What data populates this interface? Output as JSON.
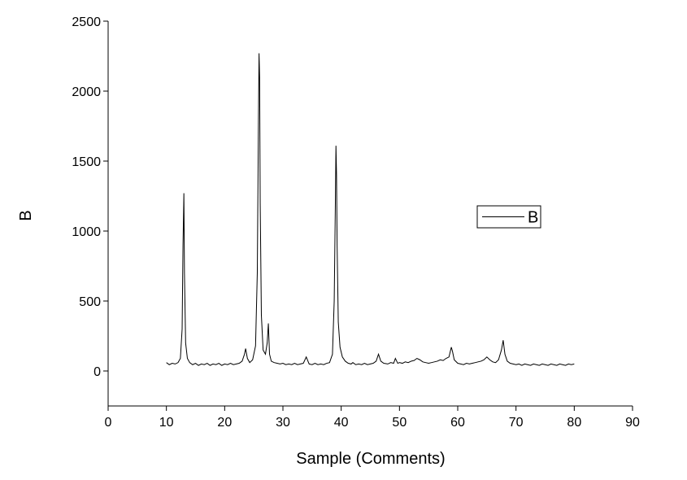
{
  "chart_data": {
    "type": "line",
    "xlabel": "Sample (Comments)",
    "ylabel": "B",
    "xlim": [
      0,
      90
    ],
    "xticks": [
      0,
      10,
      20,
      30,
      40,
      50,
      60,
      70,
      80,
      90
    ],
    "ylim": [
      -250,
      2500
    ],
    "yticks": [
      0,
      500,
      1000,
      1500,
      2000,
      2500
    ],
    "legend": "right",
    "x": [
      10,
      10.5,
      11,
      11.5,
      12,
      12.4,
      12.7,
      12.85,
      12.95,
      13.0,
      13.1,
      13.3,
      13.6,
      14,
      14.5,
      15,
      15.5,
      16,
      16.5,
      17,
      17.5,
      18,
      18.5,
      19,
      19.5,
      20,
      20.5,
      21,
      21.5,
      22,
      22.5,
      23,
      23.4,
      23.6,
      23.9,
      24.3,
      24.8,
      25.3,
      25.6,
      25.8,
      25.9,
      26.0,
      26.1,
      26.3,
      26.6,
      27.0,
      27.3,
      27.5,
      27.7,
      28.0,
      28.5,
      29,
      29.5,
      30,
      30.5,
      31,
      31.5,
      32,
      32.5,
      33,
      33.5,
      34,
      34.5,
      35,
      35.5,
      36,
      36.5,
      37,
      37.5,
      38,
      38.5,
      38.8,
      39.0,
      39.1,
      39.2,
      39.3,
      39.5,
      39.8,
      40.2,
      40.7,
      41.2,
      41.7,
      42,
      42.5,
      43,
      43.5,
      44,
      44.5,
      45,
      45.5,
      46,
      46.4,
      46.8,
      47.3,
      48,
      48.5,
      49,
      49.3,
      49.7,
      50,
      50.5,
      51,
      51.5,
      52,
      52.5,
      53,
      53.5,
      54,
      54.5,
      55,
      55.5,
      56,
      56.5,
      57,
      57.5,
      58,
      58.5,
      58.9,
      59.1,
      59.4,
      60,
      60.5,
      61,
      61.5,
      62,
      62.5,
      63,
      63.5,
      64,
      64.5,
      65,
      65.5,
      66,
      66.5,
      67,
      67.5,
      67.8,
      68.1,
      68.5,
      69,
      69.5,
      70,
      70.5,
      71,
      71.5,
      72,
      72.5,
      73,
      73.5,
      74,
      74.5,
      75,
      75.5,
      76,
      76.5,
      77,
      77.5,
      78,
      78.5,
      79,
      79.5,
      80
    ],
    "series": [
      {
        "name": "B",
        "color": "#000000",
        "values": [
          60,
          45,
          55,
          50,
          60,
          90,
          300,
          900,
          1140,
          1270,
          700,
          200,
          90,
          60,
          45,
          55,
          40,
          50,
          45,
          55,
          40,
          50,
          45,
          55,
          40,
          50,
          45,
          55,
          45,
          50,
          55,
          70,
          120,
          160,
          90,
          60,
          80,
          180,
          700,
          1800,
          2270,
          2100,
          1200,
          400,
          150,
          120,
          200,
          340,
          120,
          70,
          60,
          55,
          50,
          55,
          45,
          50,
          45,
          55,
          45,
          50,
          55,
          100,
          50,
          45,
          55,
          45,
          50,
          45,
          55,
          60,
          120,
          500,
          1200,
          1610,
          1400,
          900,
          350,
          170,
          100,
          70,
          55,
          50,
          60,
          45,
          50,
          45,
          55,
          45,
          50,
          55,
          70,
          120,
          70,
          55,
          50,
          60,
          55,
          90,
          55,
          60,
          55,
          65,
          60,
          70,
          75,
          90,
          80,
          65,
          60,
          55,
          60,
          65,
          70,
          80,
          75,
          90,
          100,
          170,
          140,
          80,
          55,
          50,
          45,
          55,
          50,
          55,
          60,
          65,
          70,
          80,
          100,
          80,
          65,
          60,
          80,
          150,
          220,
          120,
          70,
          55,
          50,
          45,
          50,
          40,
          50,
          45,
          40,
          50,
          45,
          40,
          50,
          45,
          40,
          50,
          45,
          40,
          50,
          45,
          40,
          50,
          45,
          50
        ]
      }
    ]
  }
}
